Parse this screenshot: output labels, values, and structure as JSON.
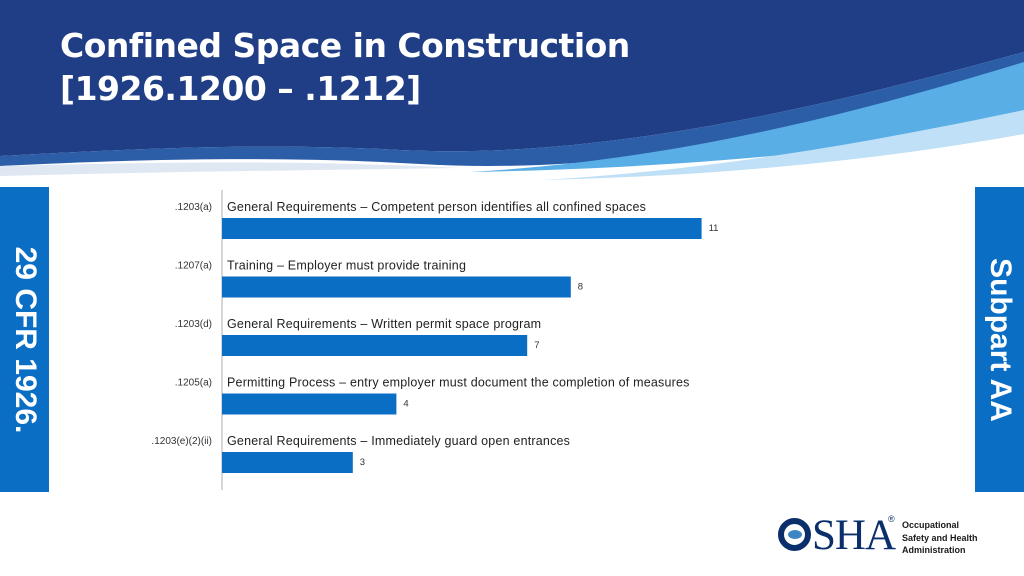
{
  "slide": {
    "title_line1": "Confined Space in Construction",
    "title_line2": "[1926.1200 – .1212]",
    "left_tab": "29 CFR 1926.",
    "right_tab": "Subpart AA"
  },
  "logo": {
    "name": "OSHA",
    "reg_mark": "®",
    "agency_line1": "Occupational",
    "agency_line2": "Safety and Health",
    "agency_line3": "Administration"
  },
  "colors": {
    "header_dark": "#1f3e86",
    "header_light": "#5aaee6",
    "bar": "#0b6ec5",
    "tab": "#0b6ec5"
  },
  "chart_data": {
    "type": "bar",
    "orientation": "horizontal",
    "title": "",
    "xlabel": "",
    "ylabel": "",
    "xlim": [
      0,
      12
    ],
    "grid": false,
    "legend": "none",
    "categories": [
      ".1203(a)",
      ".1207(a)",
      ".1203(d)",
      ".1205(a)",
      ".1203(e)(2)(ii)"
    ],
    "descriptions": [
      "General Requirements – Competent person identifies all confined spaces",
      "Training – Employer must provide training",
      "General Requirements – Written permit space program",
      "Permitting Process – entry employer must document the completion of measures",
      "General Requirements – Immediately guard open entrances"
    ],
    "values": [
      11,
      8,
      7,
      4,
      3
    ]
  }
}
